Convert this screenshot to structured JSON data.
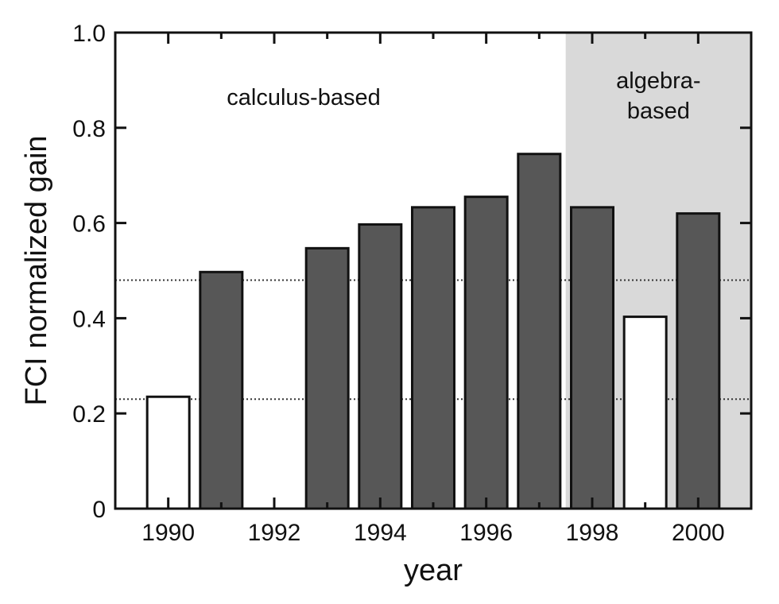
{
  "chart_data": {
    "type": "bar",
    "title": "",
    "xlabel": "year",
    "ylabel": "FCI normalized gain",
    "xlim": [
      1989,
      2001
    ],
    "ylim": [
      0,
      1.0
    ],
    "yticks": [
      "0",
      "0.2",
      "0.4",
      "0.6",
      "0.8",
      "1.0"
    ],
    "xticks": [
      "1990",
      "1992",
      "1994",
      "1996",
      "1998",
      "2000"
    ],
    "bars": [
      {
        "year": 1990,
        "value": 0.235,
        "fill": "white"
      },
      {
        "year": 1991,
        "value": 0.497,
        "fill": "dark"
      },
      {
        "year": 1993,
        "value": 0.547,
        "fill": "dark"
      },
      {
        "year": 1994,
        "value": 0.597,
        "fill": "dark"
      },
      {
        "year": 1995,
        "value": 0.633,
        "fill": "dark"
      },
      {
        "year": 1996,
        "value": 0.655,
        "fill": "dark"
      },
      {
        "year": 1997,
        "value": 0.745,
        "fill": "dark"
      },
      {
        "year": 1998,
        "value": 0.633,
        "fill": "dark"
      },
      {
        "year": 1999,
        "value": 0.403,
        "fill": "white"
      },
      {
        "year": 2000,
        "value": 0.62,
        "fill": "dark"
      }
    ],
    "reference_lines": [
      0.48,
      0.23
    ],
    "regions": [
      {
        "label": "calculus-based",
        "from": 1989,
        "to": 1997.5,
        "shaded": false
      },
      {
        "label": "algebra-\nbased",
        "from": 1997.5,
        "to": 2001,
        "shaded": true
      }
    ],
    "grid": false,
    "colors": {
      "dark_bar": "#575757",
      "white_bar": "#ffffff",
      "shade": "#d9d9d9",
      "axis": "#111111"
    }
  }
}
